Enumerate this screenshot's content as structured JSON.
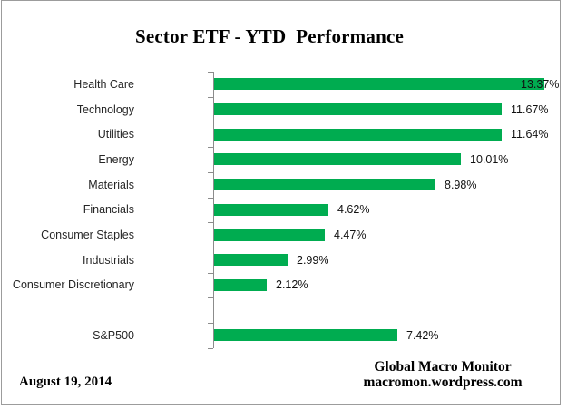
{
  "title": "Sector ETF - YTD  Performance",
  "footer": {
    "date": "August 19, 2014",
    "brand_line1": "Global Macro Monitor",
    "brand_line2": "macromon.wordpress.com"
  },
  "colors": {
    "bar": "#00AC50",
    "axis": "#8C8C8C",
    "frame_border": "#9C9C9C",
    "label_text": "#262626"
  },
  "chart_data": {
    "type": "bar",
    "orientation": "horizontal",
    "title": "Sector ETF - YTD  Performance",
    "categories": [
      "Health Care",
      "Technology",
      "Utilities",
      "Energy",
      "Materials",
      "Financials",
      "Consumer Staples",
      "Industrials",
      "Consumer Discretionary",
      "",
      "S&P500"
    ],
    "values": [
      13.37,
      11.67,
      11.64,
      10.01,
      8.98,
      4.62,
      4.47,
      2.99,
      2.12,
      null,
      7.42
    ],
    "value_labels": [
      "13.37%",
      "11.67%",
      "11.64%",
      "10.01%",
      "8.98%",
      "4.62%",
      "4.47%",
      "2.99%",
      "2.12%",
      "",
      "7.42%"
    ],
    "xlabel": "",
    "ylabel": "",
    "xlim": [
      0,
      14.5
    ],
    "grid": false,
    "legend": false,
    "bar_color": "#00AC50"
  }
}
